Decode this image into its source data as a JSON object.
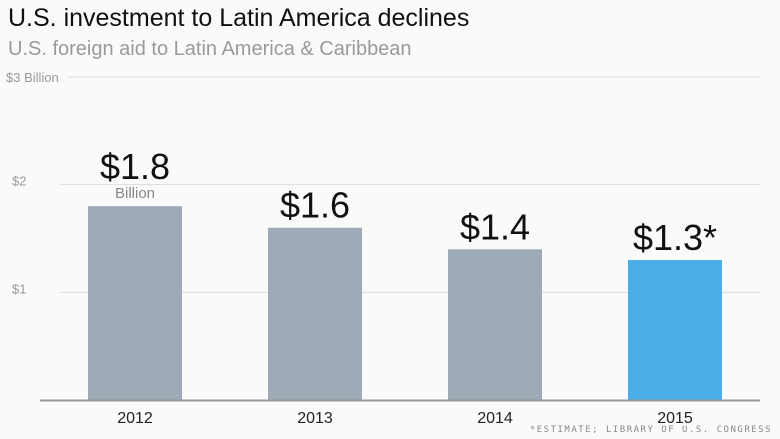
{
  "chart_data": {
    "type": "bar",
    "title": "U.S. investment to Latin America declines",
    "subtitle": "U.S. foreign aid to Latin America & Caribbean",
    "categories": [
      "2012",
      "2013",
      "2014",
      "2015"
    ],
    "values": [
      1.8,
      1.6,
      1.4,
      1.3
    ],
    "data_labels": [
      "$1.8",
      "$1.6",
      "$1.4",
      "$1.3*"
    ],
    "first_label_unit": "Billion",
    "yticks": [
      {
        "value": 1,
        "label": "$1"
      },
      {
        "value": 2,
        "label": "$2"
      },
      {
        "value": 3,
        "label": "$3 Billion"
      }
    ],
    "ylim": [
      0,
      3
    ],
    "grid": true,
    "colors": {
      "bar": "#9eaab5",
      "highlight": "#4aaee8",
      "grid": "#dddddd",
      "axis": "#999999"
    },
    "highlight_index": 3,
    "source": "*ESTIMATE; LIBRARY OF U.S. CONGRESS"
  }
}
